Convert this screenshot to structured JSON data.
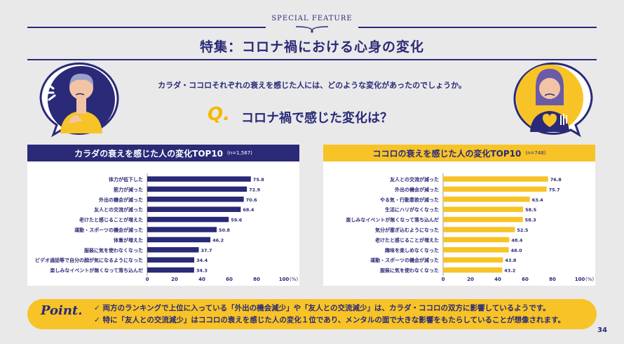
{
  "header": {
    "kicker": "SPECIAL FEATURE",
    "title": "特集：コロナ禍における心身の変化",
    "subtitle": "カラダ・ココロそれぞれの衰えを感じた人には、どのような変化があったのでしょうか。",
    "q_mark": "Q.",
    "question": "コロナ禍で感じた変化は？"
  },
  "colors": {
    "navy": "#2a2a78",
    "yellow": "#f7c326",
    "bar_navy": "#2a2a78",
    "bar_yellow": "#f7c326",
    "background": "#e9e9ea"
  },
  "icons": {
    "left": "worried-man-icon",
    "right": "worried-woman-icon"
  },
  "chart_data": [
    {
      "type": "bar",
      "orientation": "horizontal",
      "title": "カラダの衰えを感じた人の変化TOP10",
      "note": "(n=1,567)",
      "categories": [
        "体力が低下した",
        "筋力が減った",
        "外出の機会が減った",
        "友人との交流が減った",
        "老けたと感じることが増えた",
        "運動・スポーツの機会が減った",
        "体重が増えた",
        "服装に気を使わなくなった",
        "ビデオ通話等で自分の顔が気になるようになった",
        "楽しみなイベントが無くなって落ち込んだ"
      ],
      "values": [
        75.8,
        72.9,
        70.6,
        68.4,
        59.6,
        50.8,
        46.2,
        37.7,
        34.4,
        34.3
      ],
      "xlim": [
        0,
        100
      ],
      "ticks": [
        "0",
        "20",
        "40",
        "60",
        "80",
        "100"
      ],
      "unit": "(%)",
      "grid": false
    },
    {
      "type": "bar",
      "orientation": "horizontal",
      "title": "ココロの衰えを感じた人の変化TOP10",
      "note": "(n=748)",
      "categories": [
        "友人との交流が減った",
        "外出の機会が減った",
        "やる気・行動意欲が減った",
        "生活にハリがなくなった",
        "楽しみなイベントが無くなって落ち込んだ",
        "気分が塞ぎ込むようになった",
        "老けたと感じることが増えた",
        "趣味を楽しめなくなった",
        "運動・スポーツの機会が減った",
        "服装に気を使わなくなった"
      ],
      "values": [
        76.8,
        75.7,
        63.4,
        58.5,
        58.3,
        52.5,
        48.4,
        48.0,
        43.8,
        43.2
      ],
      "xlim": [
        0,
        100
      ],
      "ticks": [
        "0",
        "20",
        "40",
        "60",
        "80",
        "100"
      ],
      "unit": "(%)",
      "grid": false
    }
  ],
  "point": {
    "label": "Point.",
    "line1": "✓ 両方のランキングで上位に入っている「外出の機会減少」や「友人との交流減少」は、カラダ・ココロの双方に影響しているようです。",
    "line2": "✓ 特に「友人との交流減少」はココロの衰えを感じた人の変化１位であり、メンタルの面で大きな影響をもたらしていることが想像されます。"
  },
  "page_number": "34"
}
